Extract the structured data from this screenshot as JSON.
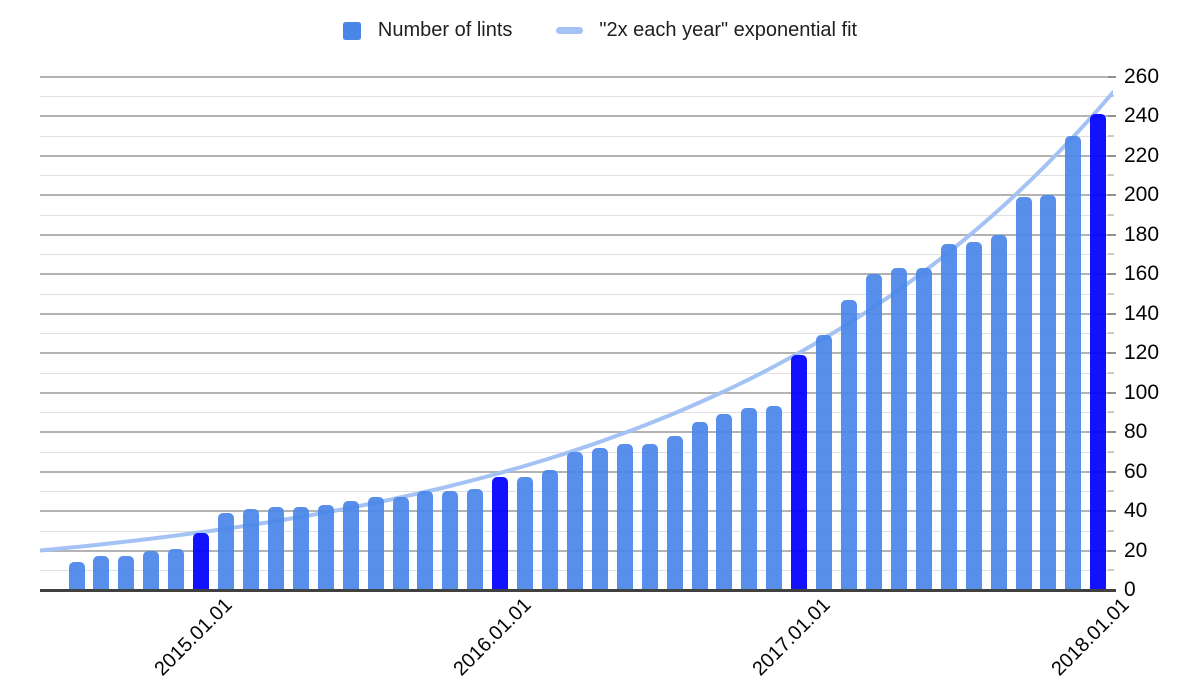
{
  "legend": {
    "bars_label": "Number of lints",
    "fit_label": "\"2x each year\" exponential fit"
  },
  "chart_data": {
    "type": "bar",
    "title": "",
    "series": [
      {
        "name": "Number of lints",
        "color": "#4a86e8",
        "highlight_color": "#0000ff",
        "highlight_indices": [
          5,
          17,
          29,
          41
        ],
        "values": [
          14,
          17,
          17,
          20,
          21,
          29,
          39,
          41,
          42,
          42,
          43,
          45,
          47,
          47,
          50,
          50,
          51,
          57,
          57,
          61,
          70,
          72,
          74,
          74,
          78,
          85,
          89,
          92,
          93,
          119,
          129,
          147,
          160,
          163,
          163,
          175,
          176,
          180,
          199,
          200,
          230,
          241
        ]
      }
    ],
    "fit_line": {
      "name": "\"2x each year\" exponential fit",
      "type": "exponential",
      "color": "#a4c2f4",
      "start_value": 20,
      "end_value": 252
    },
    "x_ticks": [
      {
        "index": 5,
        "label": "2015.01.01"
      },
      {
        "index": 17,
        "label": "2016.01.01"
      },
      {
        "index": 29,
        "label": "2017.01.01"
      },
      {
        "index": 41,
        "label": "2018.01.01"
      }
    ],
    "ylim": [
      0,
      260
    ],
    "y_tick_step": 20,
    "y_minor_step": 10,
    "grid": true,
    "legend_position": "top"
  }
}
